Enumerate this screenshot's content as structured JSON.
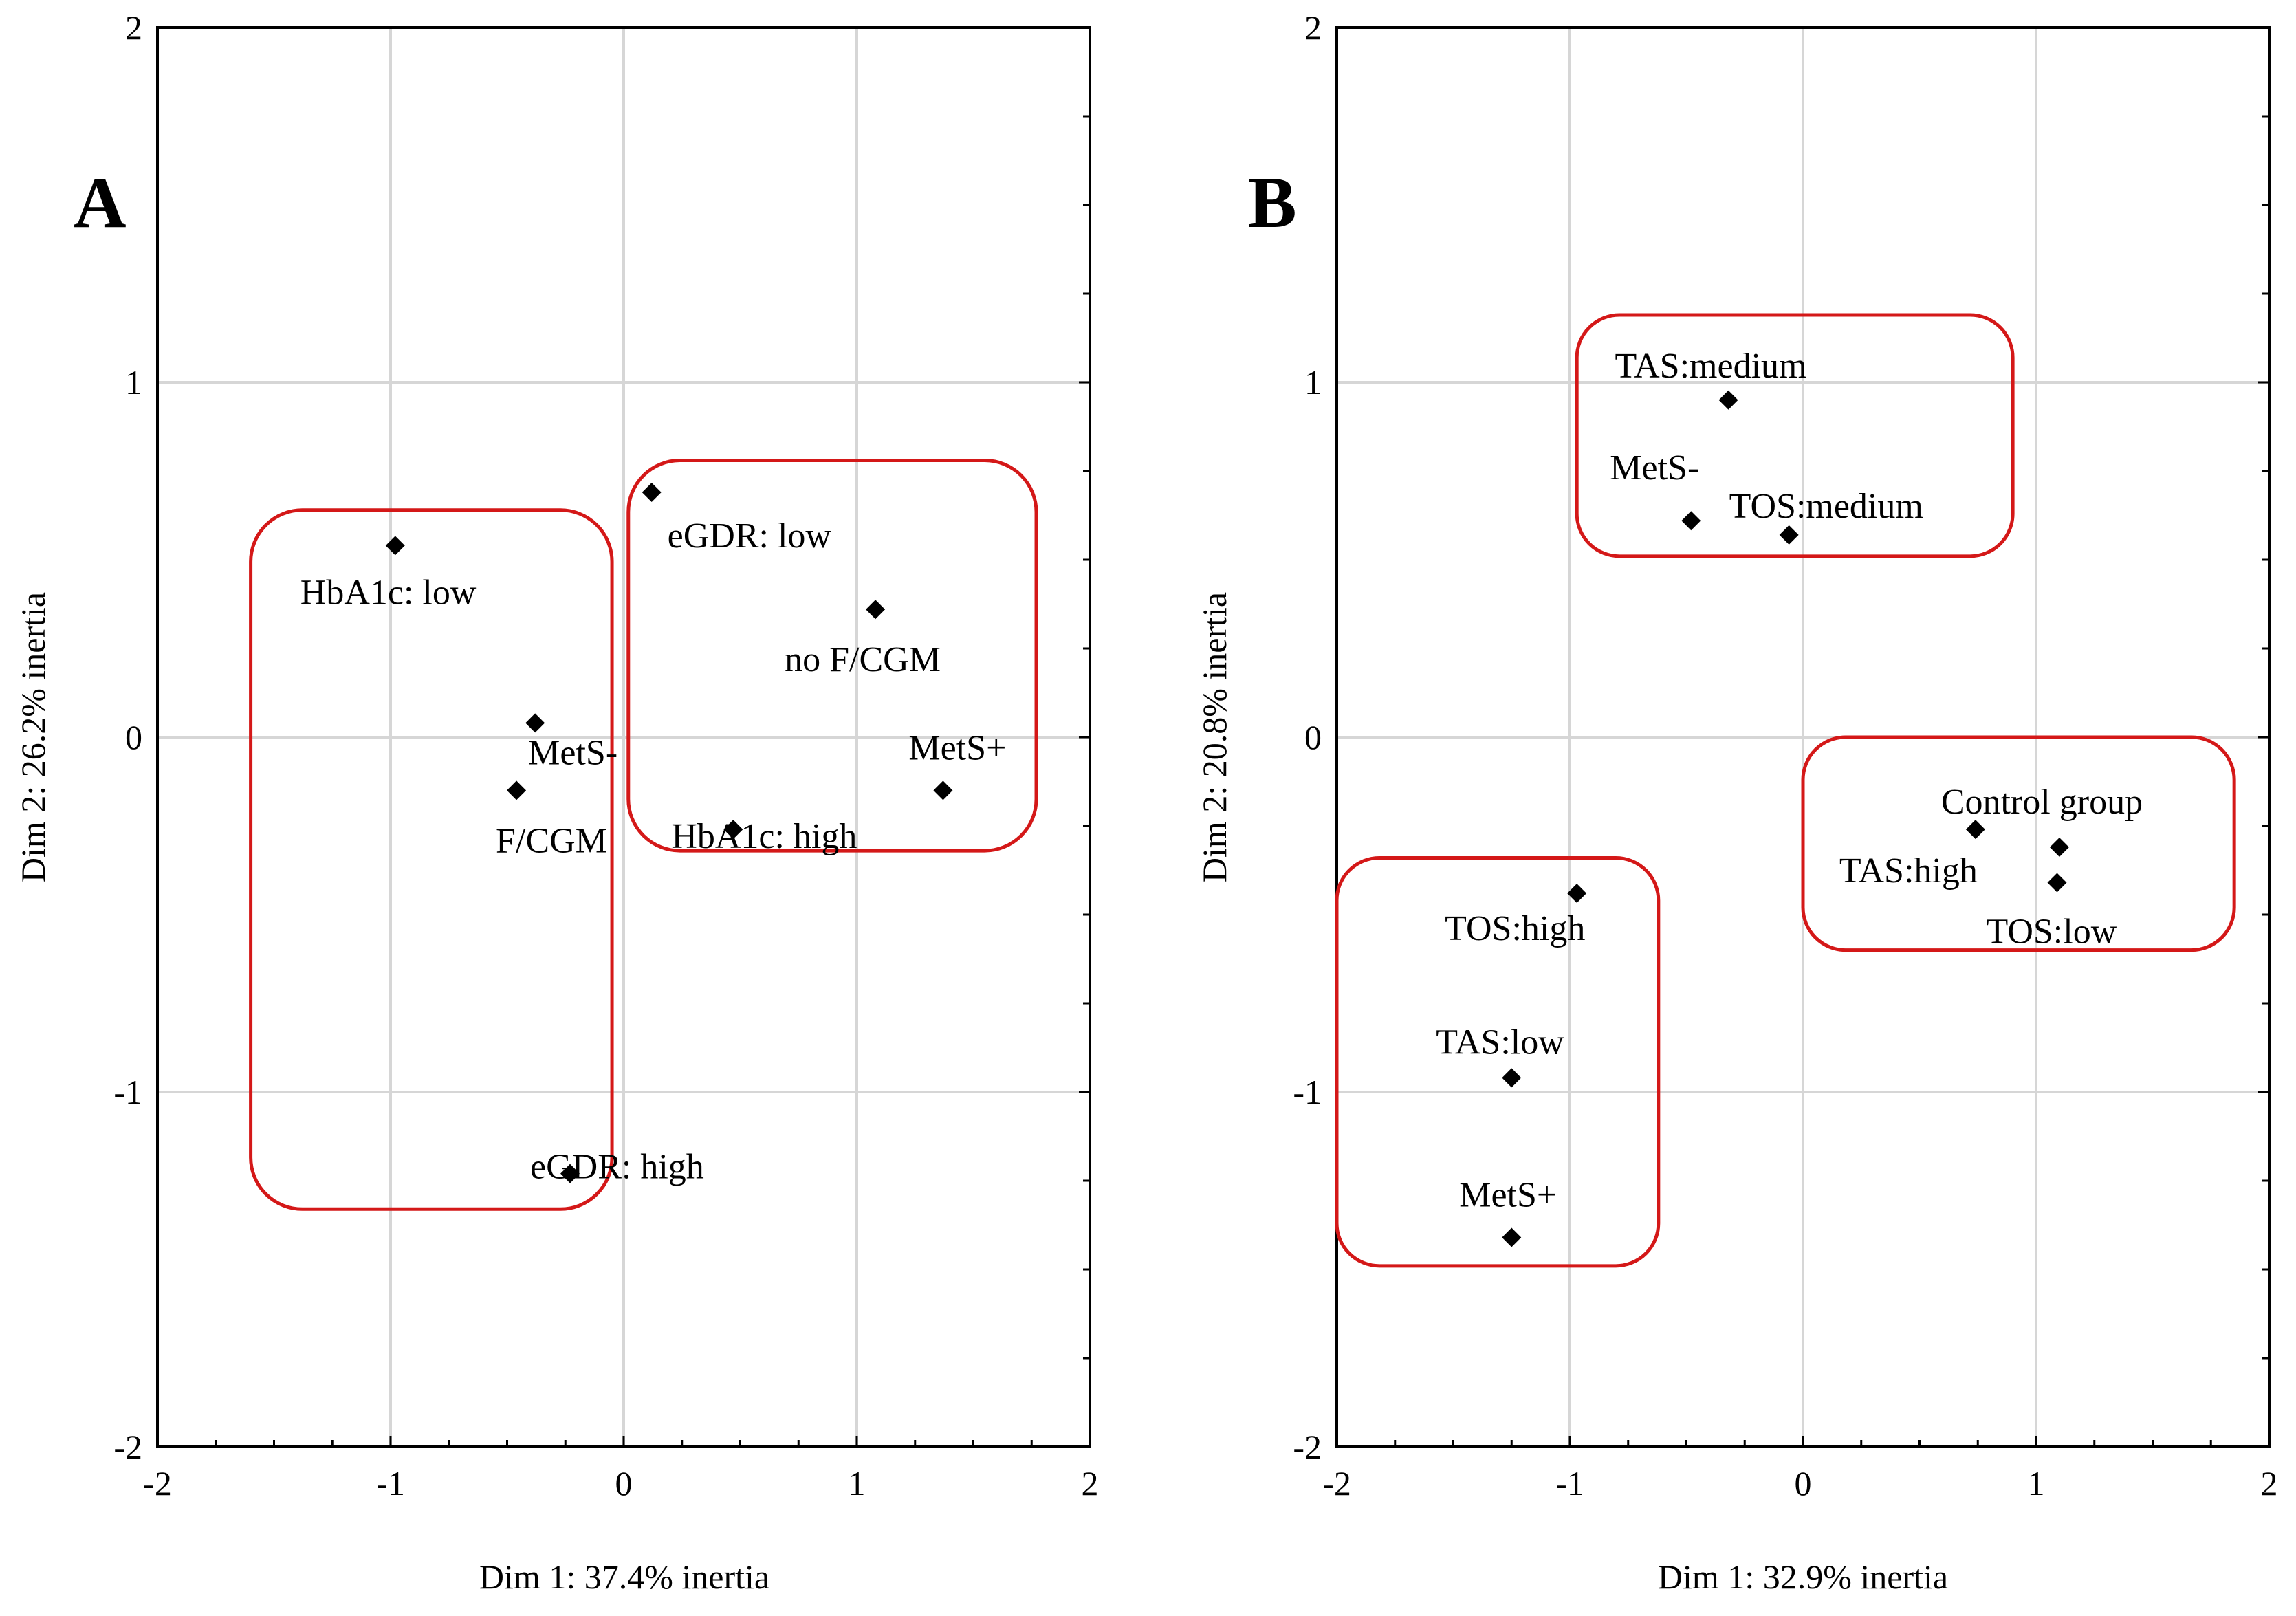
{
  "chart_data": [
    {
      "type": "scatter",
      "panel_label": "A",
      "xlabel": "Dim 1: 37.4% inertia",
      "ylabel": "Dim 2: 26.2% inertia",
      "xlim": [
        -2,
        2
      ],
      "ylim": [
        -2,
        2
      ],
      "xticks": [
        -2,
        -1,
        0,
        1,
        2
      ],
      "yticks": [
        -2,
        -1,
        0,
        1,
        2
      ],
      "grid": true,
      "marker": "diamond",
      "points": [
        {
          "label": "HbA1c: low",
          "x": -0.98,
          "y": 0.54
        },
        {
          "label": "MetS-",
          "x": -0.38,
          "y": 0.04
        },
        {
          "label": "F/CGM",
          "x": -0.46,
          "y": -0.15
        },
        {
          "label": "eGDR: high",
          "x": -0.23,
          "y": -1.23
        },
        {
          "label": "eGDR: low",
          "x": 0.12,
          "y": 0.69
        },
        {
          "label": "no F/CGM",
          "x": 1.08,
          "y": 0.36
        },
        {
          "label": "HbA1c: high",
          "x": 0.47,
          "y": -0.26
        },
        {
          "label": "MetS+",
          "x": 1.37,
          "y": -0.15
        }
      ],
      "clusters": [
        {
          "x": [
            -1.6,
            -0.05
          ],
          "y": [
            -1.33,
            0.64
          ]
        },
        {
          "x": [
            0.02,
            1.77
          ],
          "y": [
            -0.32,
            0.78
          ]
        }
      ]
    },
    {
      "type": "scatter",
      "panel_label": "B",
      "xlabel": "Dim 1: 32.9% inertia",
      "ylabel": "Dim 2: 20.8% inertia",
      "xlim": [
        -2,
        2
      ],
      "ylim": [
        -2,
        2
      ],
      "xticks": [
        -2,
        -1,
        0,
        1,
        2
      ],
      "yticks": [
        -2,
        -1,
        0,
        1,
        2
      ],
      "grid": true,
      "marker": "diamond",
      "points": [
        {
          "label": "TAS:medium",
          "x": -0.32,
          "y": 0.95
        },
        {
          "label": "MetS-",
          "x": -0.48,
          "y": 0.61
        },
        {
          "label": "TOS:medium",
          "x": -0.06,
          "y": 0.57
        },
        {
          "label": "Control group",
          "x": 0.74,
          "y": -0.26
        },
        {
          "label": "TAS:high",
          "x": 1.1,
          "y": -0.31
        },
        {
          "label": "TOS:low",
          "x": 1.09,
          "y": -0.41
        },
        {
          "label": "TOS:high",
          "x": -0.97,
          "y": -0.44
        },
        {
          "label": "TAS:low",
          "x": -1.25,
          "y": -0.96
        },
        {
          "label": "MetS+",
          "x": -1.25,
          "y": -1.41
        }
      ],
      "clusters": [
        {
          "x": [
            -0.97,
            0.9
          ],
          "y": [
            0.51,
            1.19
          ]
        },
        {
          "x": [
            0.0,
            1.85
          ],
          "y": [
            -0.6,
            0.0
          ]
        },
        {
          "x": [
            -2.0,
            -0.62
          ],
          "y": [
            -1.49,
            -0.34
          ]
        }
      ]
    }
  ]
}
